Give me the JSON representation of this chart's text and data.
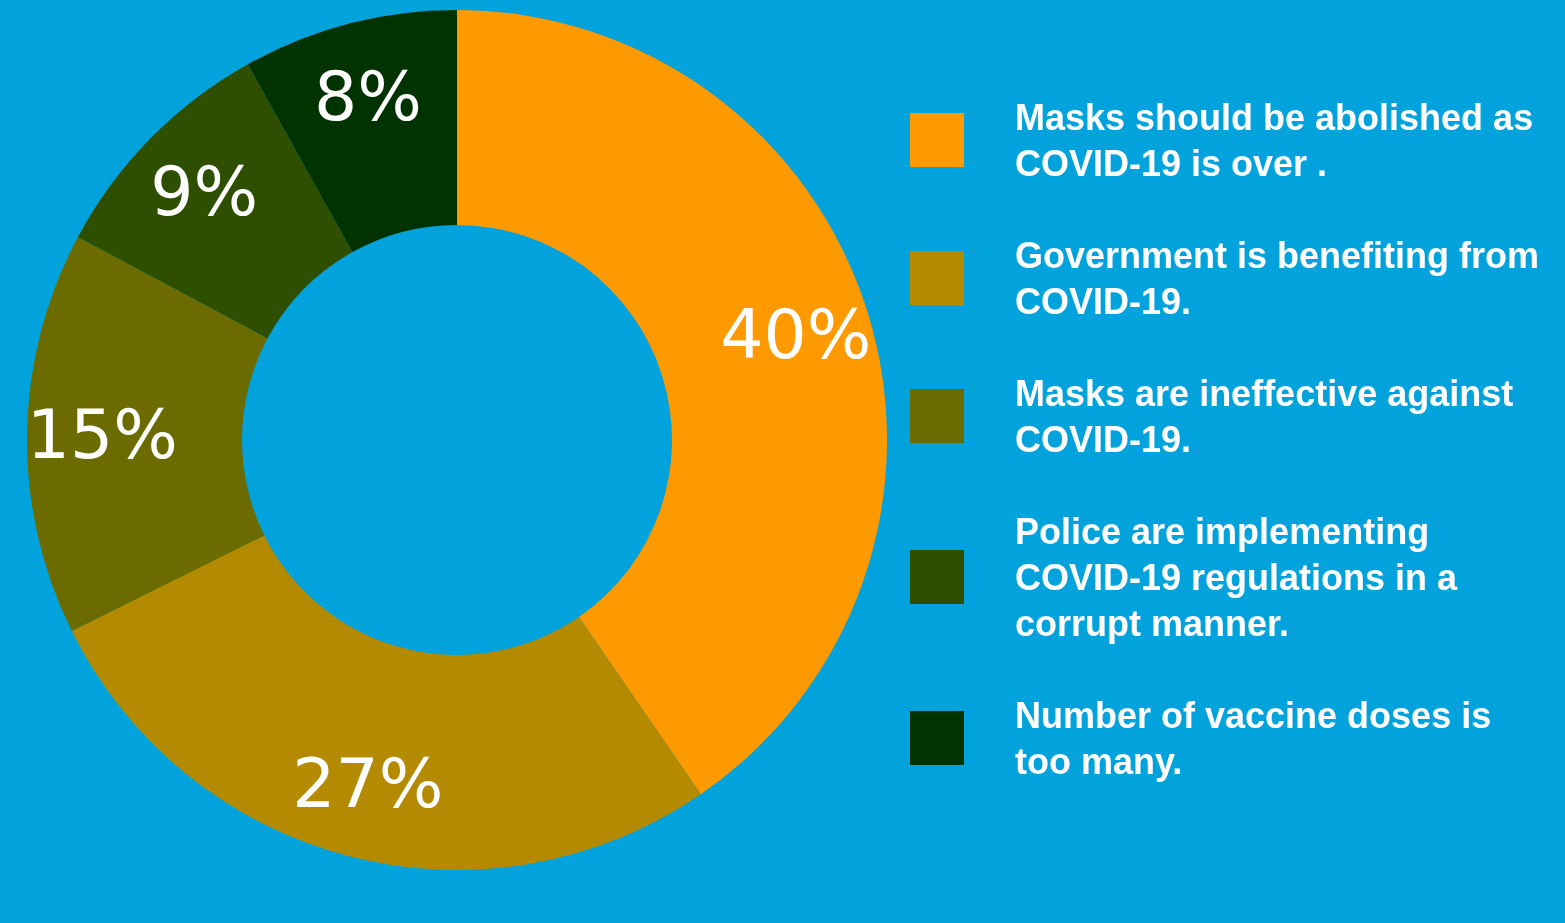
{
  "chart_data": {
    "type": "donut",
    "categories": [
      "Masks should be abolished as COVID-19 is over .",
      "Government is benefiting from COVID-19.",
      "Masks are ineffective against COVID-19.",
      "Police are implementing COVID-19 regulations in a corrupt manner.",
      "Number of vaccine doses is too many."
    ],
    "values": [
      40,
      27,
      15,
      9,
      8
    ],
    "colors": [
      "#ff9900",
      "#b38a00",
      "#6b6b00",
      "#2e4f00",
      "#003300"
    ],
    "value_labels": [
      "40%",
      "27%",
      "15%",
      "9%",
      "8%"
    ],
    "legend": "right"
  }
}
